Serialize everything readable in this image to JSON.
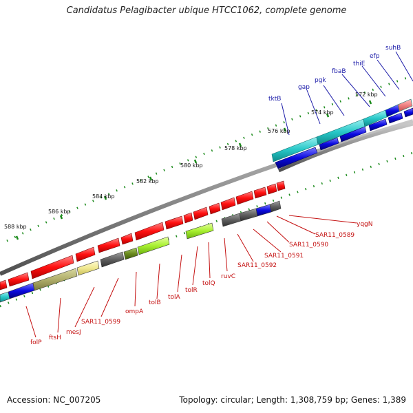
{
  "title": "Candidatus Pelagibacter ubique HTCC1062, complete genome",
  "footer": {
    "accession": "Accession: NC_007205",
    "stats": "Topology: circular; Length: 1,308,759 bp; Genes: 1,389"
  },
  "scale_labels": [
    "572 kbp",
    "574 kbp",
    "576 kbp",
    "578 kbp",
    "580 kbp",
    "582 kbp",
    "584 kbp",
    "586 kbp",
    "588 kbp"
  ],
  "genes_top_strand": [
    "suhB",
    "efp",
    "thiE",
    "fbaB",
    "pgk",
    "gap",
    "tktB"
  ],
  "genes_bottom_strand": [
    "yqgN",
    "SAR11_0589",
    "SAR11_0590",
    "SAR11_0591",
    "SAR11_0592",
    "ruvC",
    "tolQ",
    "tolR",
    "tolA",
    "tolB",
    "ompA",
    "SAR11_0599",
    "mesJ",
    "ftsH",
    "folP"
  ],
  "colors": {
    "top_label": "#1a1aa8",
    "bottom_label": "#c41010",
    "forward_cds": "#ff1010",
    "reverse_cds": "#0a0ae0",
    "cog_band": "#28c8c8",
    "backbone": "#8c8c8c",
    "tick_dots": "#1a8a1a"
  }
}
